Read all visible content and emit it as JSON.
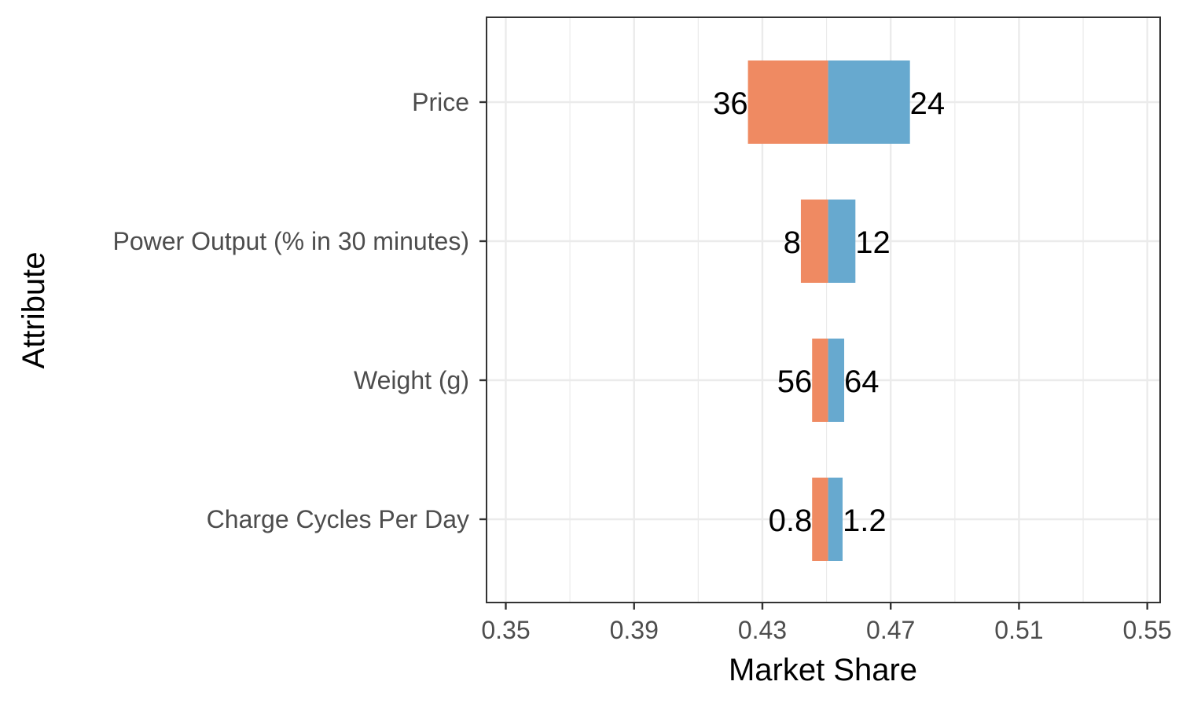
{
  "chart_data": {
    "type": "bar",
    "orientation": "horizontal",
    "chart_style": "tornado",
    "xlabel": "Market Share",
    "ylabel": "Attribute",
    "xlim": [
      0.344,
      0.554
    ],
    "xticks": [
      "0.35",
      "0.39",
      "0.43",
      "0.47",
      "0.51",
      "0.55"
    ],
    "x_tick_values": [
      0.35,
      0.39,
      0.43,
      0.47,
      0.51,
      0.55
    ],
    "baseline": 0.4505,
    "categories": [
      "Price",
      "Power Output (% in 30 minutes)",
      "Weight (g)",
      "Charge Cycles Per Day"
    ],
    "series": [
      {
        "color": "#EF8A62",
        "values": [
          0.4255,
          0.442,
          0.4455,
          0.4455
        ],
        "labels": [
          "36",
          "8",
          "56",
          "0.8"
        ]
      },
      {
        "color": "#67A9CF",
        "values": [
          0.476,
          0.459,
          0.4555,
          0.455
        ],
        "labels": [
          "24",
          "12",
          "64",
          "1.2"
        ]
      }
    ],
    "grid": true
  }
}
